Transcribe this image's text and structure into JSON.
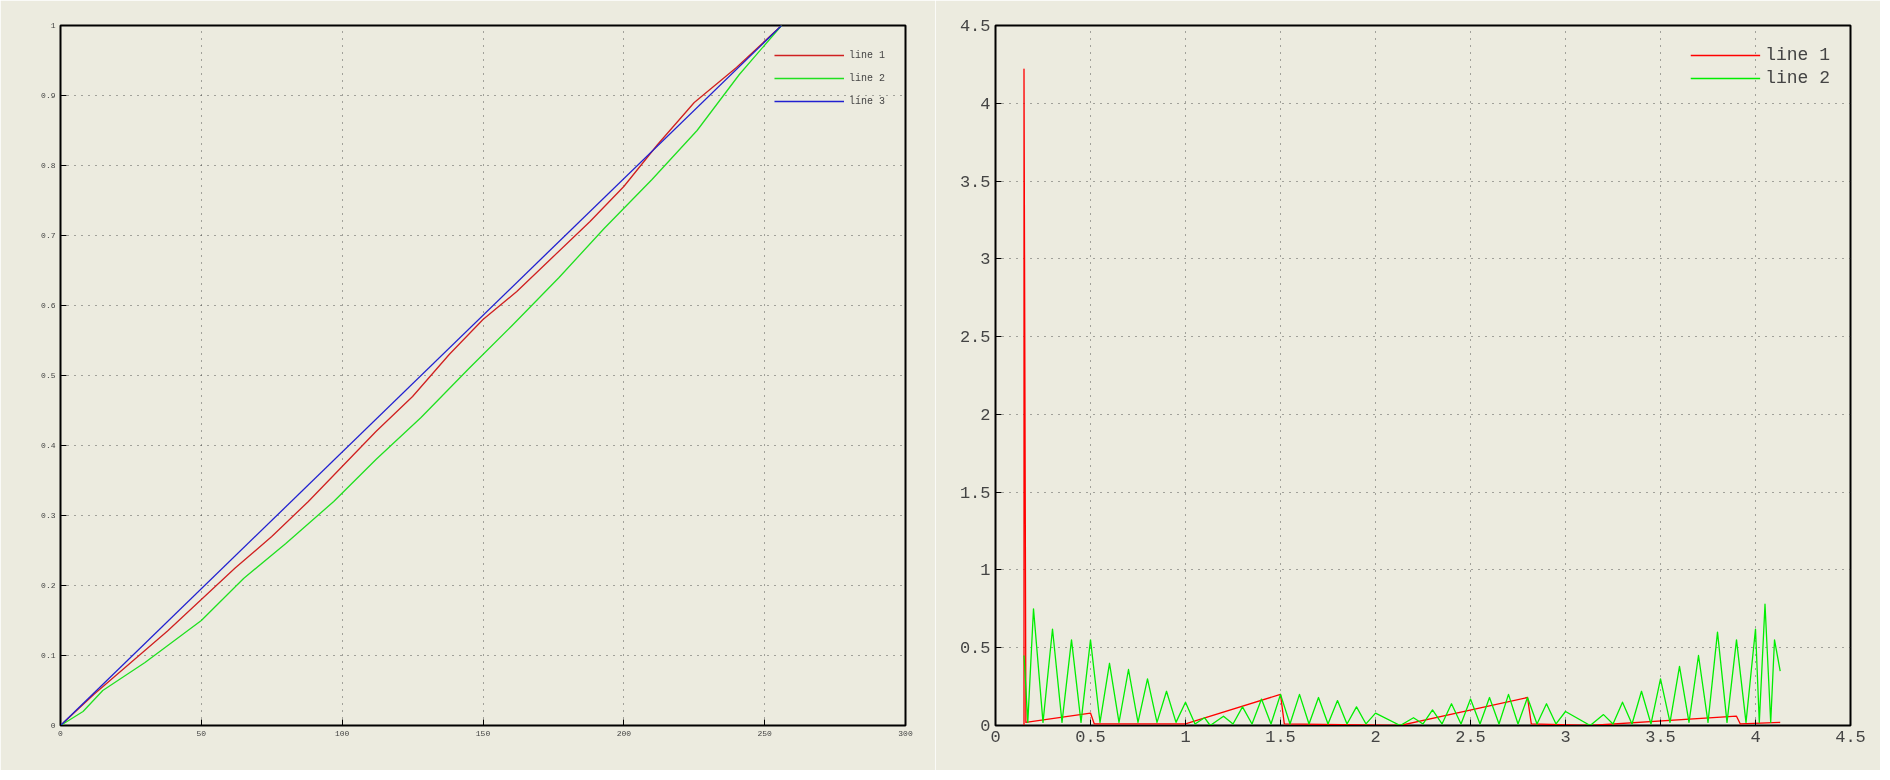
{
  "chart_data": [
    {
      "type": "line",
      "xlim": [
        0,
        300
      ],
      "ylim": [
        0,
        1
      ],
      "xticks": [
        0,
        50,
        100,
        150,
        200,
        250,
        300
      ],
      "yticks": [
        0,
        0.1,
        0.2,
        0.3,
        0.4,
        0.5,
        0.6,
        0.7,
        0.8,
        0.9,
        1
      ],
      "grid": true,
      "legend": "top right",
      "line_style": "solid",
      "marker": "none",
      "series": [
        {
          "name": "line 1",
          "color": "#d02020",
          "x": [
            0,
            12,
            25,
            38,
            50,
            62,
            75,
            88,
            100,
            112,
            125,
            138,
            150,
            162,
            175,
            188,
            200,
            212,
            225,
            240,
            256
          ],
          "values": [
            0,
            0.045,
            0.09,
            0.135,
            0.18,
            0.225,
            0.27,
            0.32,
            0.37,
            0.42,
            0.47,
            0.53,
            0.58,
            0.62,
            0.67,
            0.72,
            0.77,
            0.83,
            0.89,
            0.94,
            1
          ]
        },
        {
          "name": "line 2",
          "color": "#20e020",
          "x": [
            0,
            8,
            15,
            30,
            50,
            65,
            80,
            97,
            112,
            128,
            145,
            160,
            177,
            193,
            210,
            226,
            241,
            256
          ],
          "values": [
            0,
            0.02,
            0.05,
            0.09,
            0.15,
            0.21,
            0.26,
            0.32,
            0.38,
            0.44,
            0.51,
            0.57,
            0.64,
            0.71,
            0.78,
            0.85,
            0.93,
            1
          ]
        },
        {
          "name": "line 3",
          "color": "#2020d0",
          "x": [
            0,
            256
          ],
          "values": [
            0,
            1
          ]
        }
      ]
    },
    {
      "type": "line",
      "xlim": [
        0,
        4.5
      ],
      "ylim": [
        0,
        4.5
      ],
      "xticks": [
        0,
        0.5,
        1,
        1.5,
        2,
        2.5,
        3,
        3.5,
        4,
        4.5
      ],
      "yticks": [
        0,
        0.5,
        1,
        1.5,
        2,
        2.5,
        3,
        3.5,
        4,
        4.5
      ],
      "grid": true,
      "legend": "top right",
      "line_style": "solid",
      "marker": "none",
      "series": [
        {
          "name": "line 1",
          "color": "#ff0000",
          "x": [
            0.15,
            0.15,
            0.16,
            0.5,
            0.52,
            1.0,
            1.5,
            1.52,
            2.13,
            2.8,
            2.82,
            3.13,
            3.9,
            3.92,
            4.13
          ],
          "values": [
            0,
            4.22,
            0.02,
            0.08,
            0.01,
            0.01,
            0.2,
            0.01,
            0,
            0.18,
            0.01,
            0,
            0.06,
            0.01,
            0.02
          ]
        },
        {
          "name": "line 2",
          "color": "#00ee00",
          "x": [
            0.15,
            0.17,
            0.2,
            0.25,
            0.3,
            0.35,
            0.4,
            0.45,
            0.5,
            0.55,
            0.6,
            0.65,
            0.7,
            0.75,
            0.8,
            0.85,
            0.9,
            0.95,
            1.0,
            1.05,
            1.1,
            1.13,
            1.2,
            1.25,
            1.3,
            1.35,
            1.4,
            1.45,
            1.5,
            1.55,
            1.6,
            1.65,
            1.7,
            1.75,
            1.8,
            1.85,
            1.9,
            1.95,
            2.0,
            2.13,
            2.2,
            2.25,
            2.3,
            2.35,
            2.4,
            2.45,
            2.5,
            2.55,
            2.6,
            2.65,
            2.7,
            2.75,
            2.8,
            2.85,
            2.9,
            2.95,
            3.0,
            3.13,
            3.2,
            3.25,
            3.3,
            3.35,
            3.4,
            3.45,
            3.5,
            3.55,
            3.6,
            3.65,
            3.7,
            3.75,
            3.8,
            3.85,
            3.9,
            3.95,
            4.0,
            4.02,
            4.05,
            4.08,
            4.1,
            4.13
          ],
          "values": [
            0.45,
            0.02,
            0.75,
            0.02,
            0.62,
            0.02,
            0.55,
            0.02,
            0.55,
            0.02,
            0.4,
            0.02,
            0.36,
            0.02,
            0.3,
            0.02,
            0.22,
            0.02,
            0.15,
            0.01,
            0.05,
            0,
            0.06,
            0.01,
            0.12,
            0.01,
            0.17,
            0.01,
            0.2,
            0.01,
            0.2,
            0.01,
            0.18,
            0.01,
            0.16,
            0.01,
            0.12,
            0.01,
            0.08,
            0,
            0.05,
            0.01,
            0.1,
            0.01,
            0.14,
            0.01,
            0.17,
            0.01,
            0.18,
            0.01,
            0.2,
            0.01,
            0.18,
            0.01,
            0.14,
            0.01,
            0.09,
            0,
            0.07,
            0.01,
            0.15,
            0.01,
            0.22,
            0.01,
            0.3,
            0.02,
            0.38,
            0.02,
            0.45,
            0.02,
            0.6,
            0.02,
            0.55,
            0.02,
            0.62,
            0.02,
            0.78,
            0.02,
            0.55,
            0.35
          ]
        }
      ]
    }
  ]
}
